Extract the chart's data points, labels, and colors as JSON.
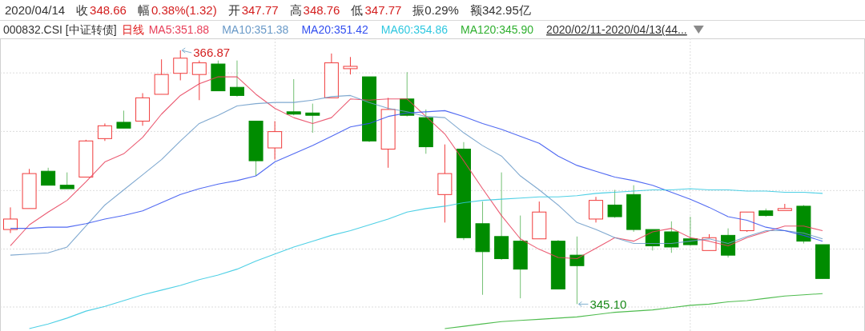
{
  "chart_data": {
    "type": "candlestick",
    "title": "000832.CSI [中证转债]",
    "subtitle": "日线",
    "legend": "top",
    "grid": true,
    "categories": [
      null,
      null,
      null,
      null,
      null,
      null,
      null,
      null,
      null,
      null,
      null,
      null,
      null,
      null,
      null,
      null,
      null,
      null,
      null,
      null,
      null,
      null,
      null,
      null,
      null,
      null,
      null,
      null,
      null,
      null,
      null,
      null,
      null,
      null,
      null,
      null,
      null,
      null,
      null,
      null,
      null,
      null,
      null,
      null
    ],
    "ohlc": [
      [
        351.5,
        353.4,
        351.2,
        352.4
      ],
      [
        353.3,
        356.7,
        353.3,
        356.3
      ],
      [
        356.5,
        356.8,
        355.3,
        355.3
      ],
      [
        355.3,
        356.4,
        355.0,
        355.0
      ],
      [
        356.0,
        359.2,
        356.0,
        359.1
      ],
      [
        359.3,
        360.6,
        359.1,
        360.4
      ],
      [
        360.7,
        361.7,
        360.2,
        360.2
      ],
      [
        360.8,
        363.2,
        360.4,
        362.8
      ],
      [
        363.1,
        366.1,
        363.1,
        364.8
      ],
      [
        364.9,
        366.87,
        364.3,
        366.2
      ],
      [
        364.8,
        366.0,
        362.6,
        365.8
      ],
      [
        365.7,
        366.0,
        363.4,
        363.4
      ],
      [
        363.7,
        366.0,
        362.9,
        363.0
      ],
      [
        360.8,
        360.8,
        356.1,
        357.4
      ],
      [
        358.5,
        360.8,
        357.5,
        359.9
      ],
      [
        361.6,
        364.4,
        361.3,
        361.4
      ],
      [
        361.5,
        362.3,
        359.8,
        361.3
      ],
      [
        362.8,
        366.6,
        362.8,
        365.8
      ],
      [
        365.3,
        366.3,
        364.8,
        365.5
      ],
      [
        364.6,
        364.6,
        359.0,
        359.1
      ],
      [
        358.4,
        362.8,
        356.8,
        361.8
      ],
      [
        362.7,
        365.0,
        361.2,
        361.3
      ],
      [
        361.1,
        361.8,
        358.0,
        358.6
      ],
      [
        354.5,
        358.8,
        352.1,
        356.3
      ],
      [
        358.4,
        359.0,
        350.6,
        350.8
      ],
      [
        352.0,
        353.9,
        345.9,
        349.6
      ],
      [
        350.9,
        356.4,
        348.9,
        349.0
      ],
      [
        350.5,
        352.7,
        345.6,
        348.1
      ],
      [
        350.7,
        353.9,
        350.7,
        353.0
      ],
      [
        350.5,
        350.6,
        346.4,
        346.4
      ],
      [
        349.3,
        350.9,
        345.1,
        348.4
      ],
      [
        352.4,
        354.3,
        352.1,
        354.0
      ],
      [
        353.6,
        354.9,
        352.5,
        352.6
      ],
      [
        354.5,
        355.3,
        351.3,
        351.5
      ],
      [
        351.5,
        351.5,
        349.7,
        350.1
      ],
      [
        351.3,
        352.2,
        349.5,
        350.0
      ],
      [
        350.7,
        352.6,
        350.1,
        350.2
      ],
      [
        349.7,
        351.1,
        349.7,
        350.8
      ],
      [
        351.0,
        351.6,
        349.1,
        349.3
      ],
      [
        351.4,
        353.0,
        351.3,
        353.0
      ],
      [
        353.1,
        353.3,
        352.6,
        352.7
      ],
      [
        353.2,
        353.7,
        353.2,
        353.3
      ],
      [
        353.5,
        353.6,
        350.3,
        350.5
      ],
      [
        350.2,
        350.2,
        347.3,
        347.3
      ]
    ],
    "colors": [
      "#f03c3c",
      "#f03c3c",
      "#008c00",
      "#008c00",
      "#f03c3c",
      "#f03c3c",
      "#008c00",
      "#f03c3c",
      "#f03c3c",
      "#f03c3c",
      "#f03c3c",
      "#008c00",
      "#008c00",
      "#008c00",
      "#f03c3c",
      "#008c00",
      "#008c00",
      "#f03c3c",
      "#f03c3c",
      "#008c00",
      "#f03c3c",
      "#008c00",
      "#008c00",
      "#f03c3c",
      "#008c00",
      "#008c00",
      "#008c00",
      "#008c00",
      "#f03c3c",
      "#008c00",
      "#008c00",
      "#f03c3c",
      "#008c00",
      "#008c00",
      "#008c00",
      "#008c00",
      "#008c00",
      "#f03c3c",
      "#008c00",
      "#f03c3c",
      "#008c00",
      "#f03c3c",
      "#008c00",
      "#008c00"
    ],
    "series": [
      {
        "name": "MA5:351.88",
        "type": "line",
        "color": "#e8405a",
        "values": [
          350.1,
          351.9,
          353.0,
          354.0,
          355.6,
          357.3,
          358.0,
          359.4,
          361.4,
          363.0,
          364.0,
          364.6,
          364.6,
          363.1,
          361.9,
          361.1,
          360.6,
          361.1,
          362.7,
          362.6,
          362.7,
          362.7,
          361.2,
          359.7,
          357.4,
          355.0,
          352.7,
          350.7,
          349.8,
          349.1,
          349.0,
          349.9,
          350.8,
          350.5,
          351.3,
          351.6,
          350.8,
          350.5,
          350.1,
          350.8,
          351.3,
          351.8,
          351.8,
          351.4
        ]
      },
      {
        "name": "MA10:351.38",
        "type": "line",
        "color": "#6a9ac8",
        "values": [
          349.3,
          349.4,
          349.5,
          350.0,
          351.8,
          353.6,
          354.9,
          356.2,
          357.5,
          359.1,
          360.6,
          361.3,
          362.1,
          362.3,
          362.4,
          362.4,
          362.6,
          362.9,
          363.0,
          362.4,
          361.9,
          361.6,
          361.2,
          361.1,
          359.8,
          358.7,
          357.8,
          356.1,
          354.9,
          353.6,
          352.1,
          351.5,
          350.8,
          350.3,
          350.3,
          350.3,
          350.5,
          350.7,
          350.3,
          350.9,
          351.4,
          351.4,
          351.2,
          350.7
        ]
      },
      {
        "name": "MA20:351.42",
        "type": "line",
        "color": "#3350f0",
        "values": [
          351.6,
          351.6,
          351.7,
          351.7,
          352.0,
          352.4,
          352.7,
          353.1,
          353.8,
          354.5,
          355.0,
          355.4,
          355.7,
          356.1,
          357.3,
          358.0,
          358.7,
          359.5,
          360.3,
          360.6,
          361.2,
          361.5,
          361.6,
          361.7,
          361.2,
          360.6,
          360.1,
          359.5,
          358.9,
          357.8,
          357.0,
          356.5,
          356.0,
          355.7,
          355.3,
          354.7,
          354.1,
          353.4,
          352.6,
          352.3,
          351.7,
          351.4,
          351.0,
          350.5
        ]
      },
      {
        "name": "MA60:354.86",
        "type": "line",
        "color": "#30c8e0",
        "values": [
          null,
          343.0,
          343.4,
          343.9,
          344.5,
          344.9,
          345.4,
          345.9,
          346.3,
          346.7,
          347.2,
          347.6,
          348.1,
          348.8,
          349.4,
          350.0,
          350.5,
          351.0,
          351.4,
          351.9,
          352.4,
          353.0,
          353.3,
          353.5,
          353.8,
          354.0,
          354.1,
          354.2,
          354.3,
          354.3,
          354.4,
          354.6,
          354.7,
          354.8,
          354.9,
          354.9,
          355.0,
          354.9,
          354.9,
          354.8,
          354.8,
          354.7,
          354.7,
          354.6
        ]
      },
      {
        "name": "MA120:345.90",
        "type": "line",
        "color": "#30b030",
        "values": [
          null,
          null,
          null,
          null,
          null,
          null,
          null,
          null,
          null,
          null,
          null,
          null,
          null,
          null,
          null,
          null,
          null,
          null,
          null,
          null,
          null,
          null,
          null,
          343.0,
          343.2,
          343.4,
          343.6,
          343.7,
          343.8,
          343.9,
          344.0,
          344.2,
          344.4,
          344.5,
          344.6,
          344.8,
          345.0,
          345.1,
          345.3,
          345.4,
          345.6,
          345.8,
          345.9,
          346.0
        ]
      }
    ],
    "annotations": [
      "2020/04/14",
      "收",
      "348.66",
      "幅",
      "0.38%(1.32)",
      "开",
      "347.77",
      "高",
      "348.76",
      "低",
      "347.77",
      "振0.29%",
      "额342.95亿",
      "2020/02/11-2020/04/13(44...",
      "366.87",
      "345.10"
    ]
  }
}
